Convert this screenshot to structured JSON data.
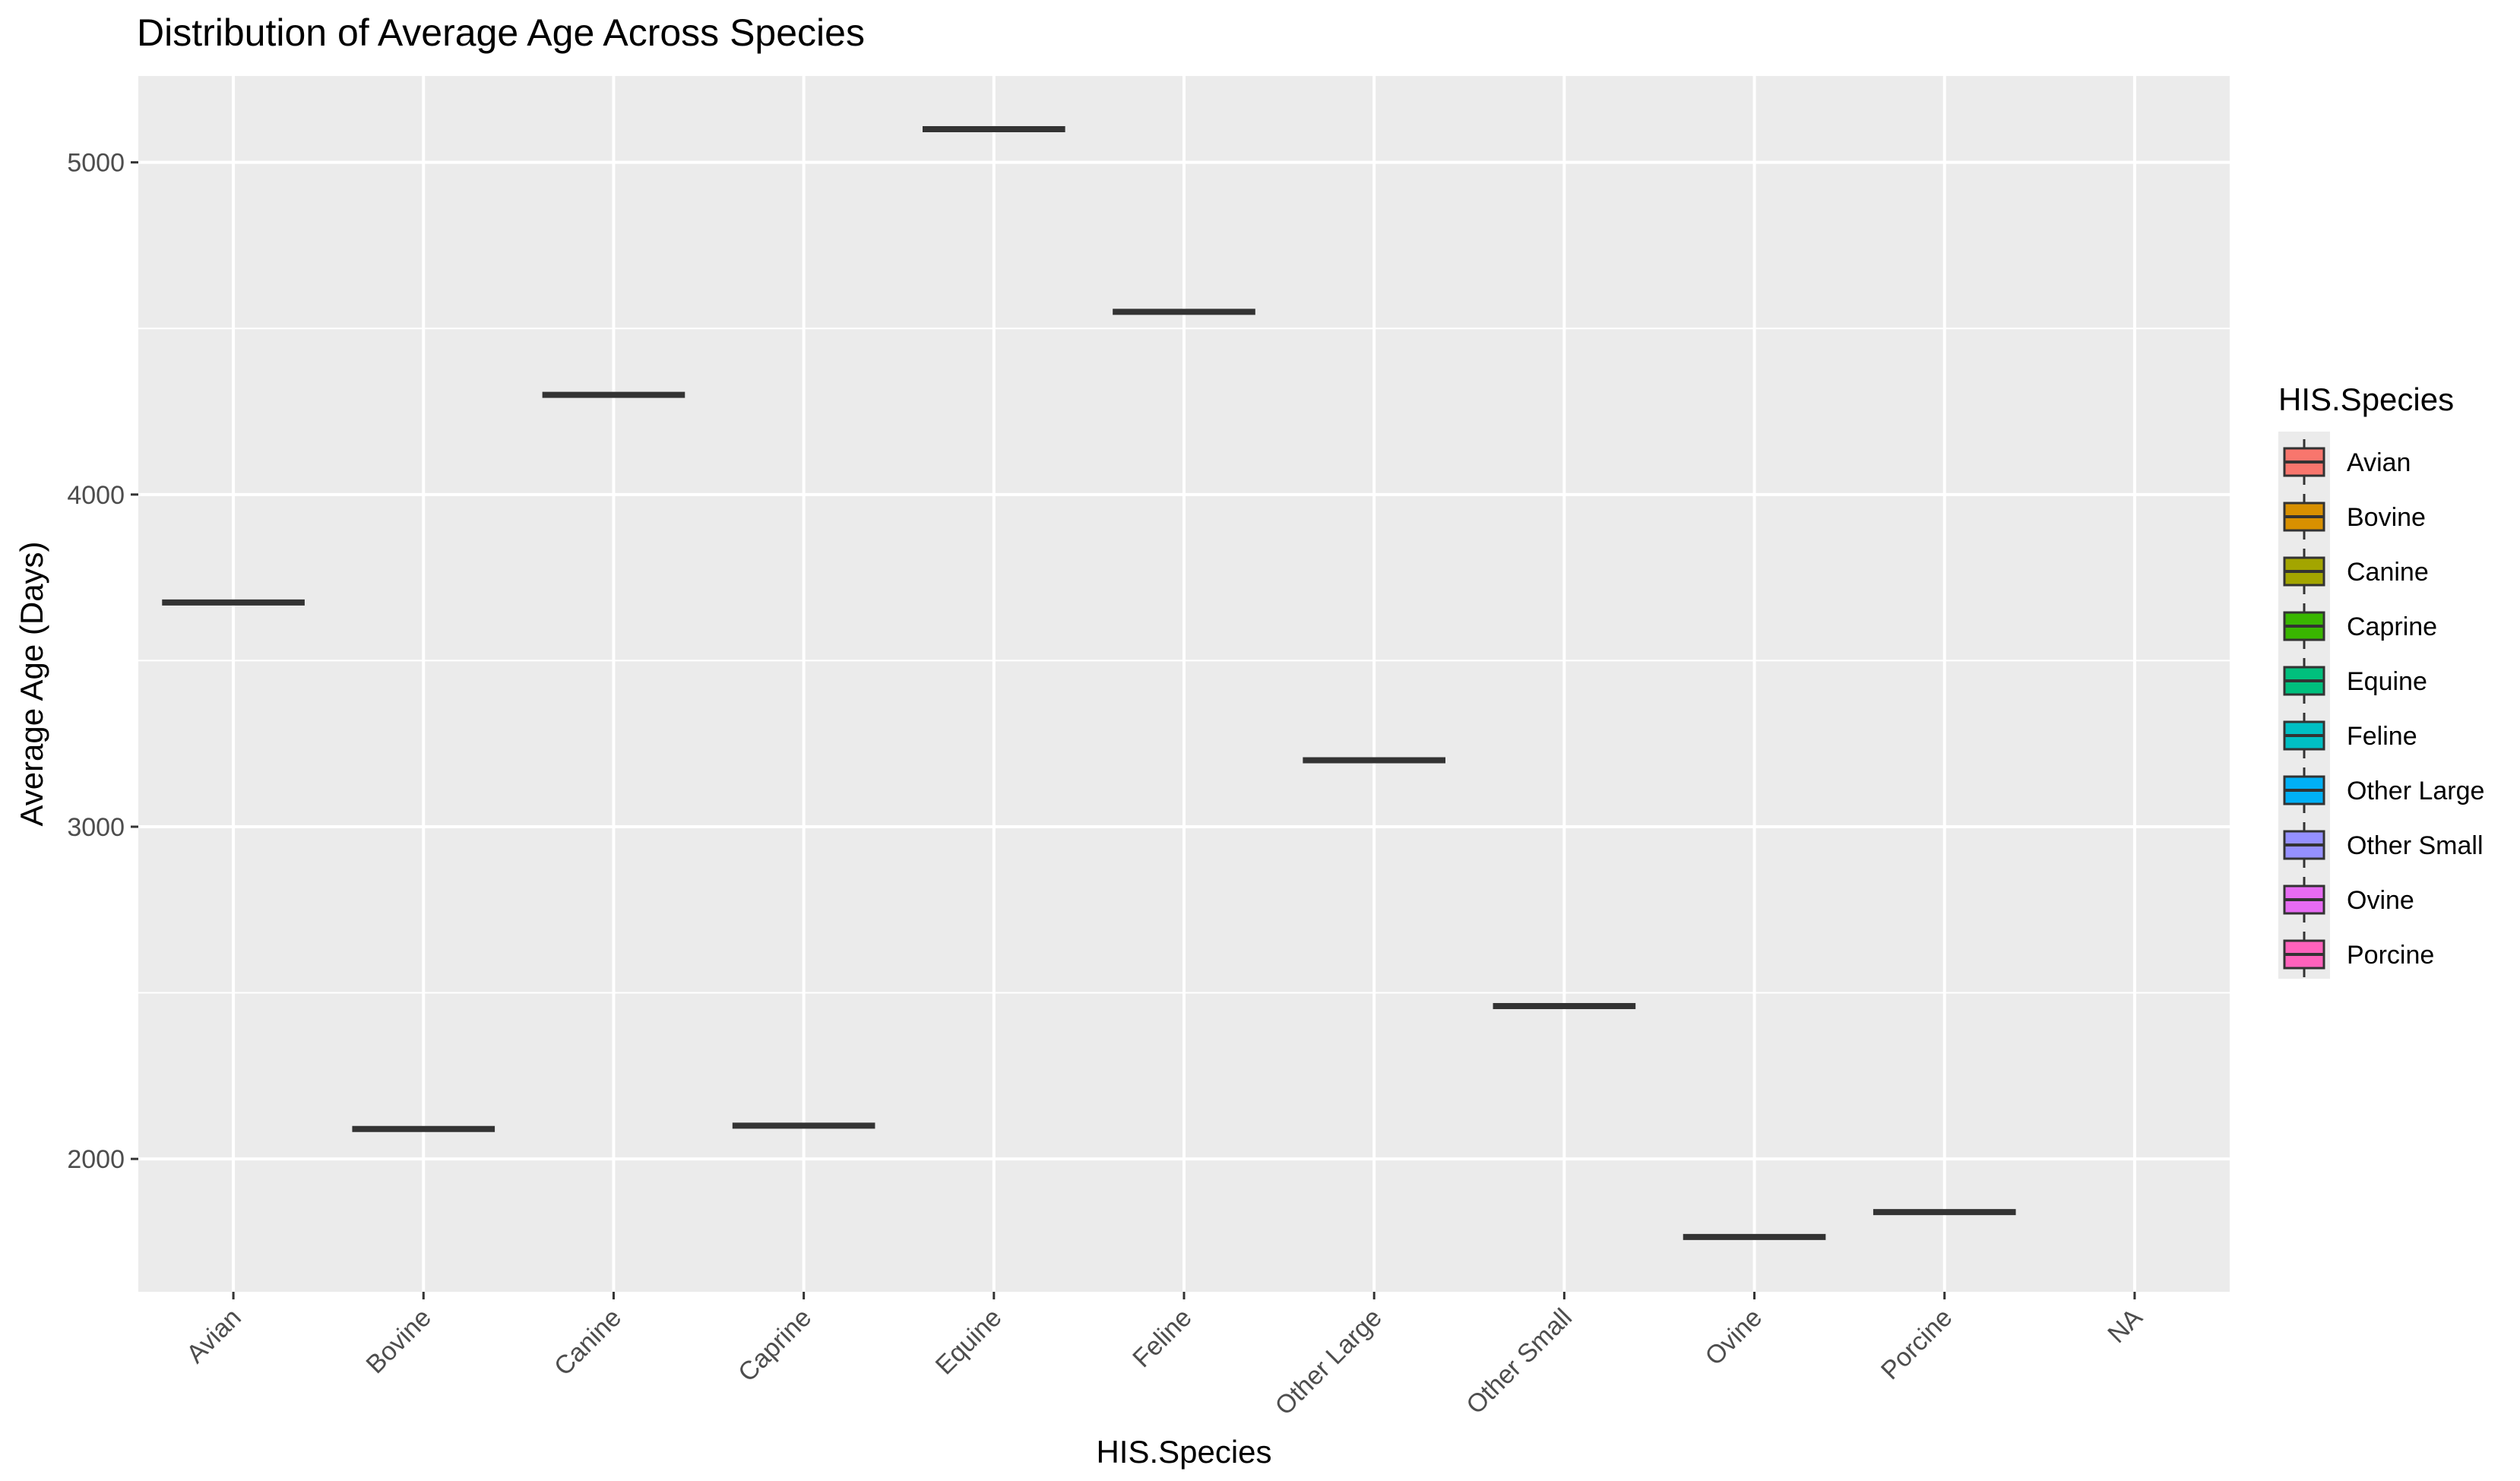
{
  "chart_data": {
    "type": "boxplot",
    "title": "Distribution of Average Age Across Species",
    "xlabel": "HIS.Species",
    "ylabel": "Average Age (Days)",
    "categories": [
      "Avian",
      "Bovine",
      "Canine",
      "Caprine",
      "Equine",
      "Feline",
      "Other Large",
      "Other Small",
      "Ovine",
      "Porcine",
      "NA"
    ],
    "values": [
      3675,
      2090,
      4300,
      2100,
      5100,
      4550,
      3200,
      2460,
      1765,
      1840,
      null
    ],
    "ylim": [
      1600,
      5260
    ],
    "yticks": [
      2000,
      3000,
      4000,
      5000
    ],
    "grid": true,
    "legend": {
      "title": "HIS.Species",
      "position": "right",
      "items": [
        {
          "label": "Avian",
          "color": "#F8766D"
        },
        {
          "label": "Bovine",
          "color": "#D89000"
        },
        {
          "label": "Canine",
          "color": "#A3A500"
        },
        {
          "label": "Caprine",
          "color": "#39B600"
        },
        {
          "label": "Equine",
          "color": "#00BF7D"
        },
        {
          "label": "Feline",
          "color": "#00BFC4"
        },
        {
          "label": "Other Large",
          "color": "#00B0F6"
        },
        {
          "label": "Other Small",
          "color": "#9590FF"
        },
        {
          "label": "Ovine",
          "color": "#E76BF3"
        },
        {
          "label": "Porcine",
          "color": "#FF62BC"
        }
      ]
    }
  }
}
